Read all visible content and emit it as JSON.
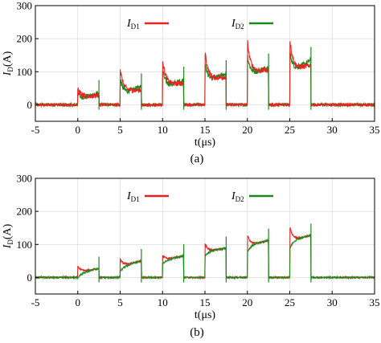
{
  "figure": {
    "panels": [
      {
        "caption": "(a)",
        "xlabel": "t(μs)",
        "ylabel": "I",
        "ylabel_sub": "D",
        "ylabel_unit": "(A)",
        "legend": [
          {
            "symbol": "I",
            "subscript": "D1",
            "color": "#e8231f"
          },
          {
            "symbol": "I",
            "subscript": "D2",
            "color": "#1a8a1a"
          }
        ]
      },
      {
        "caption": "(b)",
        "xlabel": "t(μs)",
        "ylabel": "I",
        "ylabel_sub": "D",
        "ylabel_unit": "(A)",
        "legend": [
          {
            "symbol": "I",
            "subscript": "D1",
            "color": "#e8231f"
          },
          {
            "symbol": "I",
            "subscript": "D2",
            "color": "#1a8a1a"
          }
        ]
      }
    ]
  },
  "chart_data": [
    {
      "type": "line",
      "title": "",
      "xlabel": "t(μs)",
      "ylabel": "I_D(A)",
      "xlim": [
        -5,
        35
      ],
      "ylim": [
        -50,
        300
      ],
      "xticks": [
        "-5",
        "0",
        "5",
        "10",
        "15",
        "20",
        "25",
        "30",
        "35"
      ],
      "yticks": [
        "0",
        "100",
        "200",
        "300"
      ],
      "grid": true,
      "legend_position": "top",
      "pulses": [
        {
          "on": 0,
          "off": 2.5,
          "start": [
            20,
            15
          ],
          "end": [
            30,
            35
          ],
          "overshoot": 30
        },
        {
          "on": 5,
          "off": 7.5,
          "start": [
            40,
            30
          ],
          "end": [
            45,
            55
          ],
          "overshoot": 70
        },
        {
          "on": 10,
          "off": 12.5,
          "start": [
            60,
            50
          ],
          "end": [
            65,
            75
          ],
          "overshoot": 80
        },
        {
          "on": 15,
          "off": 17.5,
          "start": [
            75,
            65
          ],
          "end": [
            85,
            95
          ],
          "overshoot": 90
        },
        {
          "on": 20,
          "off": 22.5,
          "start": [
            100,
            85
          ],
          "end": [
            105,
            115
          ],
          "overshoot": 95
        },
        {
          "on": 25,
          "off": 27.5,
          "start": [
            105,
            95
          ],
          "end": [
            120,
            135
          ],
          "overshoot": 100
        }
      ],
      "series": [
        {
          "name": "I_D1",
          "color": "#e8231f"
        },
        {
          "name": "I_D2",
          "color": "#1a8a1a"
        }
      ]
    },
    {
      "type": "line",
      "title": "",
      "xlabel": "t(μs)",
      "ylabel": "I_D(A)",
      "xlim": [
        -5,
        35
      ],
      "ylim": [
        -50,
        300
      ],
      "xticks": [
        "-5",
        "0",
        "5",
        "10",
        "15",
        "20",
        "25",
        "30",
        "35"
      ],
      "yticks": [
        "0",
        "100",
        "200",
        "300"
      ],
      "grid": true,
      "legend_position": "top",
      "pulses": [
        {
          "on": 0,
          "off": 2.5,
          "start": [
            15,
            10
          ],
          "end": [
            27,
            28
          ],
          "overshoot": 20
        },
        {
          "on": 5,
          "off": 7.5,
          "start": [
            35,
            30
          ],
          "end": [
            50,
            51
          ],
          "overshoot": 20
        },
        {
          "on": 10,
          "off": 12.5,
          "start": [
            52,
            50
          ],
          "end": [
            65,
            66
          ],
          "overshoot": 15
        },
        {
          "on": 15,
          "off": 17.5,
          "start": [
            78,
            78
          ],
          "end": [
            88,
            89
          ],
          "overshoot": 25
        },
        {
          "on": 20,
          "off": 22.5,
          "start": [
            95,
            96
          ],
          "end": [
            112,
            113
          ],
          "overshoot": 35
        },
        {
          "on": 25,
          "off": 27.5,
          "start": [
            110,
            112
          ],
          "end": [
            128,
            128
          ],
          "overshoot": 45
        }
      ],
      "series": [
        {
          "name": "I_D1",
          "color": "#e8231f"
        },
        {
          "name": "I_D2",
          "color": "#1a8a1a"
        }
      ]
    }
  ]
}
